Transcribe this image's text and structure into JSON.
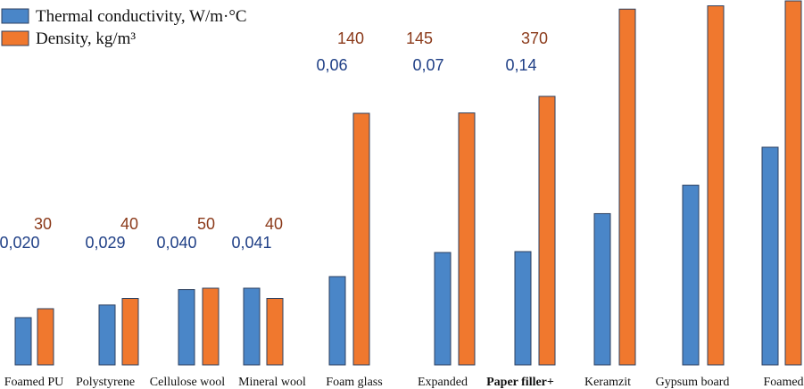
{
  "chart_data": {
    "type": "bar",
    "title": "",
    "xlabel": "",
    "ylabel": "",
    "categories": [
      "Foamed PU",
      "Polystyrene",
      "Cellulose wool",
      "Mineral wool",
      "Foam glass",
      "Expanded",
      "Paper filler+",
      "Keramzit",
      "Gypsum board",
      "Foamed"
    ],
    "series": [
      {
        "name": "Thermal conductivity, W/m·°C",
        "color": "#4a86c8",
        "values": [
          0.02,
          0.029,
          0.04,
          0.041,
          0.06,
          0.07,
          0.14,
          0.18,
          0.21,
          0.25
        ],
        "labels": [
          "0,020",
          "0,029",
          "0,040",
          "0,041",
          "0,06",
          "0,07",
          "0,14",
          null,
          null,
          null
        ]
      },
      {
        "name": "Density, kg/m³",
        "color": "#f0782e",
        "values": [
          30,
          40,
          50,
          40,
          140,
          145,
          370,
          900,
          920,
          950
        ],
        "labels": [
          "30",
          "40",
          "50",
          "40",
          "140",
          "145",
          "370",
          null,
          null,
          null
        ]
      }
    ]
  },
  "colors": {
    "blue_label": "#1f3f86",
    "orange_label": "#8b3a1a",
    "bar_outline": "#2d4060"
  }
}
